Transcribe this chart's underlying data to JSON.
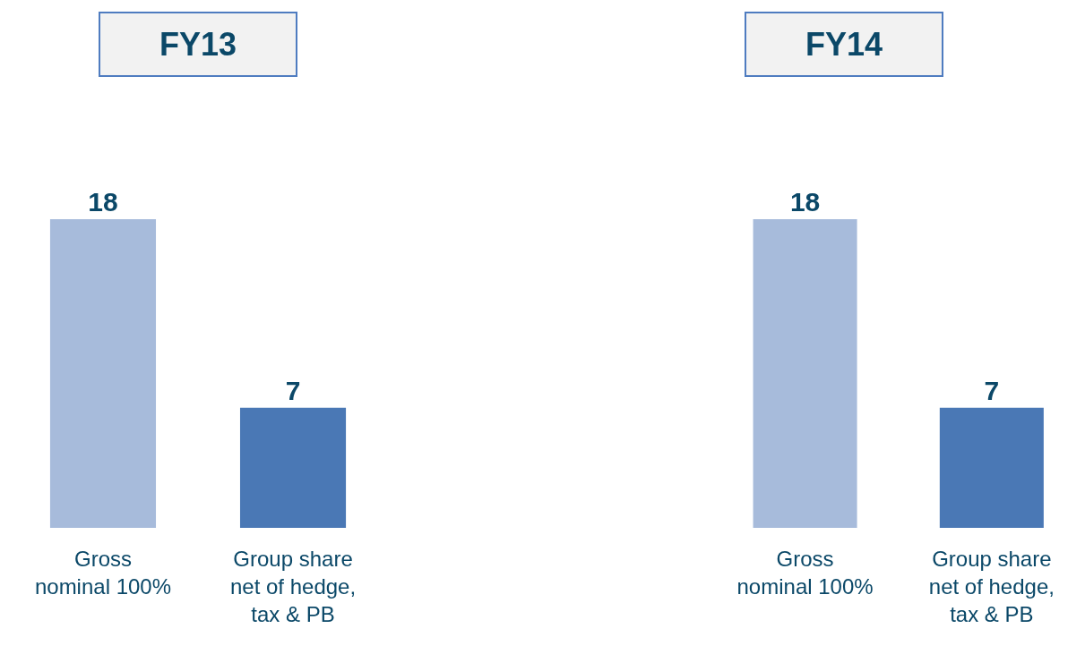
{
  "chart_data": [
    {
      "type": "bar",
      "title": "FY13",
      "categories": [
        "Gross\nnominal 100%",
        "Group share\nnet of hedge,\ntax & PB"
      ],
      "values": [
        18,
        7
      ],
      "colors": [
        "#a7bbdb",
        "#4a78b5"
      ],
      "data_labels": true,
      "tick_labels": "x"
    },
    {
      "type": "bar",
      "title": "FY14",
      "categories": [
        "Gross\nnominal 100%",
        "Group share\nnet of hedge,\ntax & PB"
      ],
      "values": [
        18,
        7
      ],
      "colors": [
        "#a7bbdb",
        "#4a78b5"
      ],
      "data_labels": true,
      "tick_labels": "x"
    }
  ]
}
